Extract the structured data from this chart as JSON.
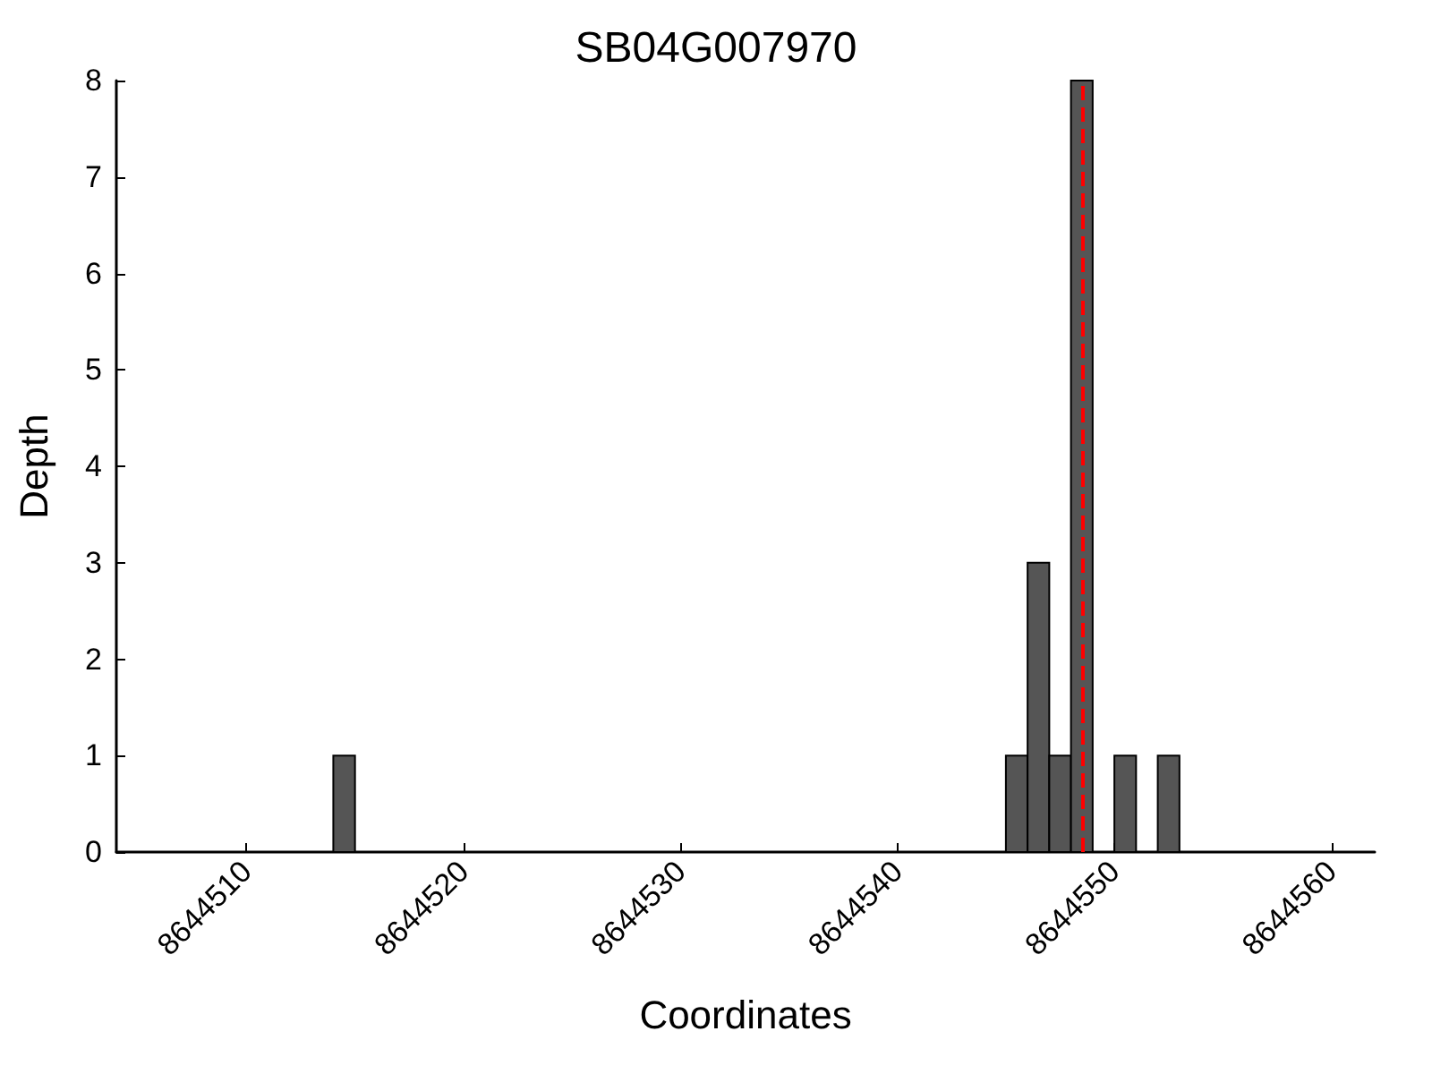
{
  "chart_data": {
    "type": "histogram",
    "title": "SB04G007970",
    "xlabel": "Coordinates",
    "ylabel": "Depth",
    "bins": [
      8644514,
      8644515,
      8644516,
      8644517,
      8644518,
      8644519,
      8644520,
      8644521,
      8644522,
      8644523,
      8644524,
      8644525,
      8644526,
      8644527,
      8644528,
      8644529,
      8644530,
      8644531,
      8644532,
      8644533,
      8644534,
      8644535,
      8644536,
      8644537,
      8644538,
      8644539,
      8644540,
      8644541,
      8644542,
      8644543,
      8644544,
      8644545,
      8644546,
      8644547,
      8644548,
      8644549,
      8644550,
      8644551,
      8644552,
      8644553
    ],
    "values": [
      1,
      0,
      0,
      0,
      0,
      0,
      0,
      0,
      0,
      0,
      0,
      0,
      0,
      0,
      0,
      0,
      0,
      0,
      0,
      0,
      0,
      0,
      0,
      0,
      0,
      0,
      0,
      0,
      0,
      0,
      0,
      1,
      3,
      1,
      8,
      0,
      1,
      0,
      1
    ],
    "color": "#555555",
    "xlim": [
      8644504,
      8644562
    ],
    "xticks": [
      8644510,
      8644520,
      8644530,
      8644540,
      8644550,
      8644560
    ],
    "ylim": [
      0,
      8
    ],
    "yticks": [
      0,
      1,
      2,
      3,
      4,
      5,
      6,
      7,
      8
    ],
    "ref_lines": [
      {
        "axis": "x",
        "value": 8644548.5,
        "color": "#ff0000",
        "line_style": "dashed"
      }
    ],
    "grid": false,
    "legend": false
  }
}
